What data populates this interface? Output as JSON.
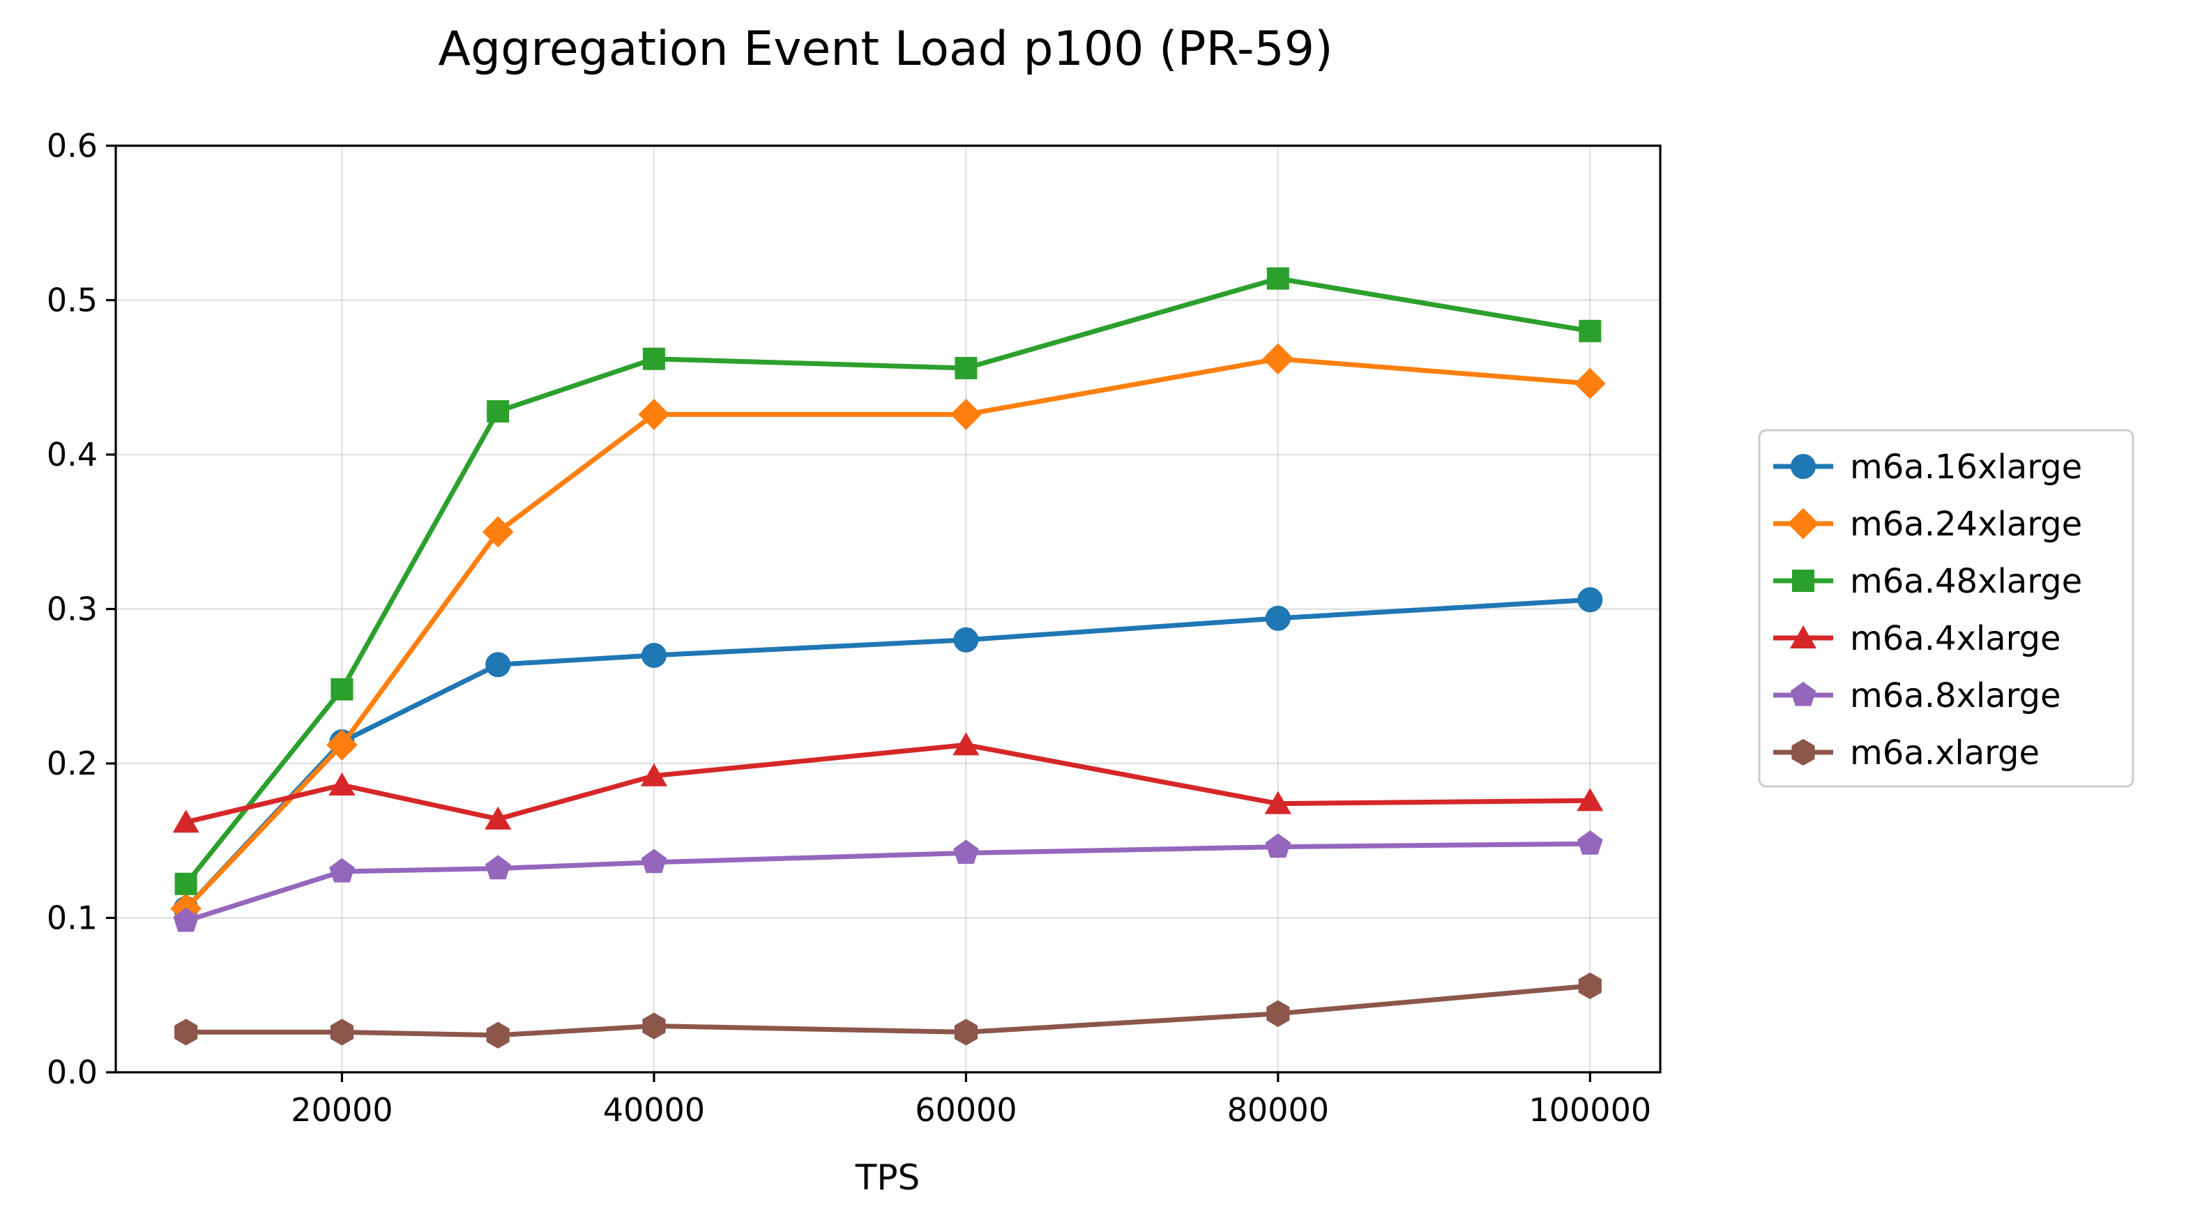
{
  "chart_data": {
    "type": "line",
    "title": "Aggregation Event Load p100 (PR-59)",
    "xlabel": "TPS",
    "ylabel": "",
    "x": [
      10000,
      20000,
      30000,
      40000,
      60000,
      80000,
      100000
    ],
    "xlim": [
      5500,
      104500
    ],
    "ylim": [
      0.0,
      0.6
    ],
    "xticks": [
      20000,
      40000,
      60000,
      80000,
      100000
    ],
    "xtick_labels": [
      "20000",
      "40000",
      "60000",
      "80000",
      "100000"
    ],
    "yticks": [
      0.0,
      0.1,
      0.2,
      0.3,
      0.4,
      0.5,
      0.6
    ],
    "ytick_labels": [
      "0.0",
      "0.1",
      "0.2",
      "0.3",
      "0.4",
      "0.5",
      "0.6"
    ],
    "grid": true,
    "legend_position": "right, outside plot",
    "series": [
      {
        "name": "m6a.16xlarge",
        "color": "#1f77b4",
        "marker": "circle",
        "values": [
          0.106,
          0.214,
          0.264,
          0.27,
          0.28,
          0.294,
          0.306
        ]
      },
      {
        "name": "m6a.24xlarge",
        "color": "#ff7f0e",
        "marker": "diamond",
        "values": [
          0.106,
          0.212,
          0.35,
          0.426,
          0.426,
          0.462,
          0.446
        ]
      },
      {
        "name": "m6a.48xlarge",
        "color": "#2ca02c",
        "marker": "square",
        "values": [
          0.122,
          0.248,
          0.428,
          0.462,
          0.456,
          0.514,
          0.48
        ]
      },
      {
        "name": "m6a.4xlarge",
        "color": "#d62728",
        "marker": "triangle",
        "values": [
          0.162,
          0.186,
          0.164,
          0.192,
          0.212,
          0.174,
          0.176
        ]
      },
      {
        "name": "m6a.8xlarge",
        "color": "#9467bd",
        "marker": "pentagon",
        "values": [
          0.098,
          0.13,
          0.132,
          0.136,
          0.142,
          0.146,
          0.148
        ]
      },
      {
        "name": "m6a.xlarge",
        "color": "#8c564b",
        "marker": "hexagon",
        "values": [
          0.026,
          0.026,
          0.024,
          0.03,
          0.026,
          0.038,
          0.056
        ]
      }
    ]
  }
}
